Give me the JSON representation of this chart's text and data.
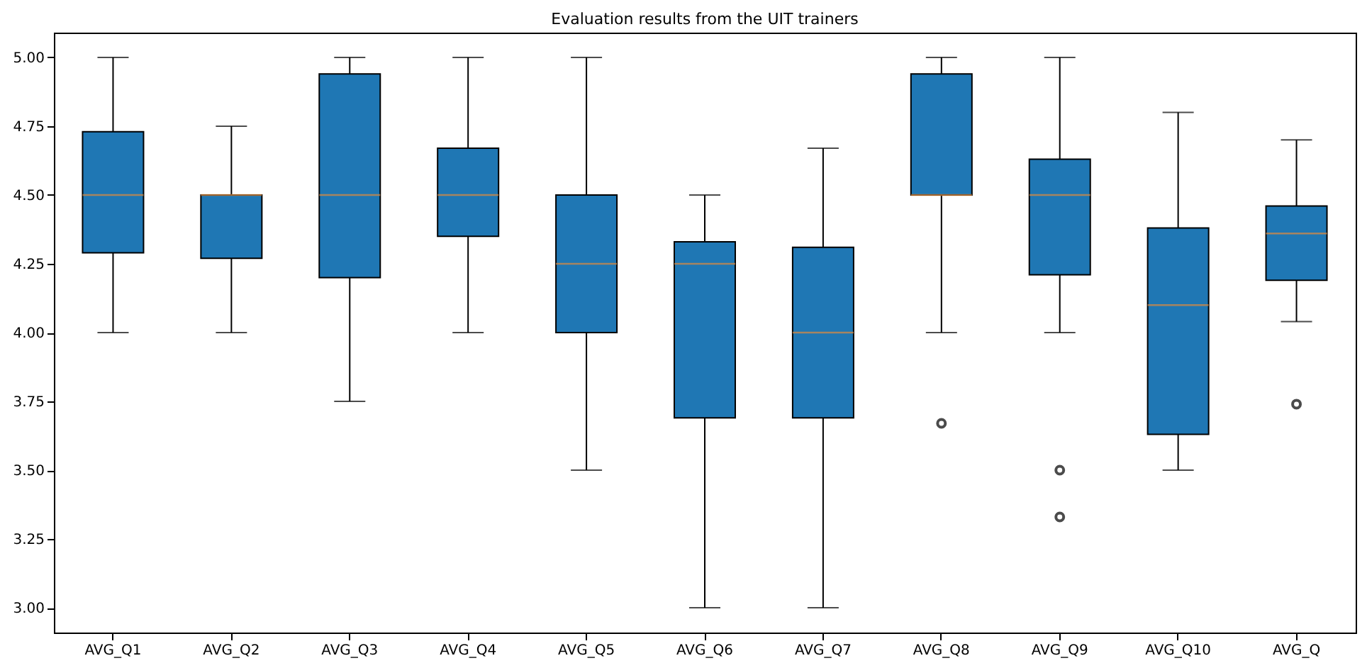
{
  "chart_data": {
    "type": "box",
    "title": "Evaluation results from the UIT trainers",
    "categories": [
      "AVG_Q1",
      "AVG_Q2",
      "AVG_Q3",
      "AVG_Q4",
      "AVG_Q5",
      "AVG_Q6",
      "AVG_Q7",
      "AVG_Q8",
      "AVG_Q9",
      "AVG_Q10",
      "AVG_Q"
    ],
    "series": [
      {
        "color": "#1f77b4",
        "boxes": [
          {
            "low": 4.0,
            "q1": 4.29,
            "median": 4.5,
            "q3": 4.73,
            "high": 5.0
          },
          {
            "low": 4.0,
            "q1": 4.27,
            "median": 4.5,
            "q3": 4.5,
            "high": 4.75
          },
          {
            "low": 3.75,
            "q1": 4.2,
            "median": 4.5,
            "q3": 4.94,
            "high": 5.0
          },
          {
            "low": 4.0,
            "q1": 4.35,
            "median": 4.5,
            "q3": 4.67,
            "high": 5.0
          },
          {
            "low": 3.5,
            "q1": 4.0,
            "median": 4.25,
            "q3": 4.5,
            "high": 5.0
          },
          {
            "low": 3.0,
            "q1": 3.69,
            "median": 4.25,
            "q3": 4.33,
            "high": 4.5
          },
          {
            "low": 3.0,
            "q1": 3.69,
            "median": 4.0,
            "q3": 4.31,
            "high": 4.67
          },
          {
            "low": 4.0,
            "q1": 4.5,
            "median": 4.5,
            "q3": 4.94,
            "high": 5.0,
            "outliers": [
              3.67
            ]
          },
          {
            "low": 4.0,
            "q1": 4.21,
            "median": 4.5,
            "q3": 4.63,
            "high": 5.0,
            "outliers": [
              3.5,
              3.33
            ]
          },
          {
            "low": 3.5,
            "q1": 3.63,
            "median": 4.1,
            "q3": 4.38,
            "high": 4.8
          },
          {
            "low": 4.04,
            "q1": 4.19,
            "median": 4.36,
            "q3": 4.46,
            "high": 4.7,
            "outliers": [
              3.74
            ]
          }
        ]
      }
    ],
    "ylim": [
      2.91,
      5.09
    ],
    "yticks": [
      {
        "value": 3.0,
        "label": "3.00"
      },
      {
        "value": 3.25,
        "label": "3.25"
      },
      {
        "value": 3.5,
        "label": "3.50"
      },
      {
        "value": 3.75,
        "label": "3.75"
      },
      {
        "value": 4.0,
        "label": "4.00"
      },
      {
        "value": 4.25,
        "label": "4.25"
      },
      {
        "value": 4.5,
        "label": "4.50"
      },
      {
        "value": 4.75,
        "label": "4.75"
      },
      {
        "value": 5.0,
        "label": "5.00"
      }
    ],
    "grid": false
  }
}
